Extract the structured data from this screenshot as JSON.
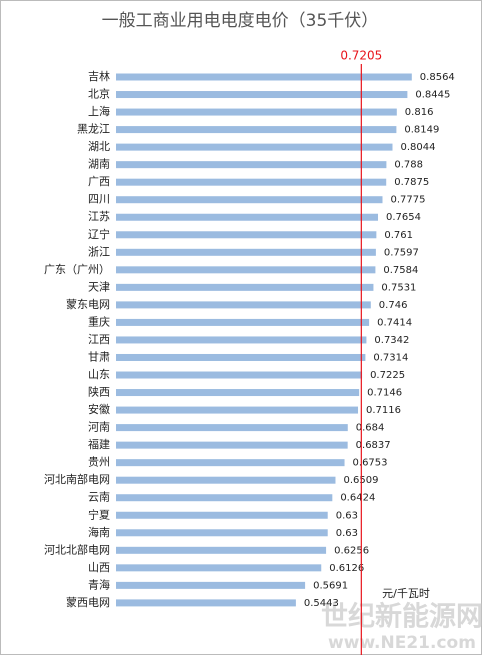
{
  "chart_data": {
    "type": "bar",
    "orientation": "horizontal",
    "title": "一般工商业用电电度电价（35千伏）",
    "categories": [
      "吉林",
      "北京",
      "上海",
      "黑龙江",
      "湖北",
      "湖南",
      "广西",
      "四川",
      "江苏",
      "辽宁",
      "浙江",
      "广东（广州）",
      "天津",
      "蒙东电网",
      "重庆",
      "江西",
      "甘肃",
      "山东",
      "陕西",
      "安徽",
      "河南",
      "福建",
      "贵州",
      "河北南部电网",
      "云南",
      "宁夏",
      "海南",
      "河北北部电网",
      "山西",
      "青海",
      "蒙西电网"
    ],
    "values": [
      0.8564,
      0.8445,
      0.816,
      0.8149,
      0.8044,
      0.788,
      0.7875,
      0.7775,
      0.7654,
      0.761,
      0.7597,
      0.7584,
      0.7531,
      0.746,
      0.7414,
      0.7342,
      0.7314,
      0.7225,
      0.7146,
      0.7116,
      0.684,
      0.6837,
      0.6753,
      0.6509,
      0.6424,
      0.63,
      0.63,
      0.6256,
      0.6126,
      0.5691,
      0.5443
    ],
    "color": "#9bbbe0",
    "xlim": [
      0.06,
      0.9
    ],
    "reference_line": {
      "value": 0.7205,
      "color": "#e8141b"
    },
    "unit_note": "元/千瓦时",
    "watermark": [
      "世纪新能源网",
      "www.NE21.com"
    ]
  }
}
